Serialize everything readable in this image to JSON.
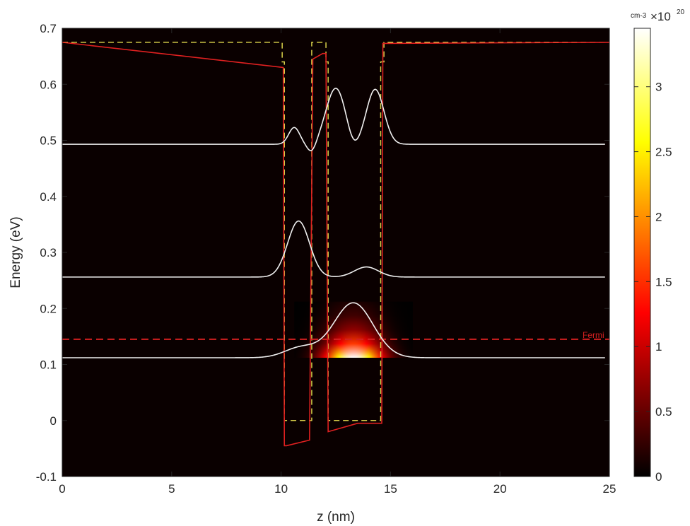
{
  "chart_data": {
    "type": "line",
    "title": "",
    "xlabel": "z (nm)",
    "ylabel": "Energy (eV)",
    "xlim": [
      0,
      25
    ],
    "ylim": [
      -0.1,
      0.7
    ],
    "xticks": [
      "0",
      "5",
      "10",
      "15",
      "20",
      "25"
    ],
    "yticks": [
      "-0.1",
      "0",
      "0.1",
      "0.2",
      "0.3",
      "0.4",
      "0.5",
      "0.6",
      "0.7"
    ],
    "background": "#0a0000",
    "colorbar": {
      "range": [
        0,
        3.45
      ],
      "ticks": [
        "0",
        "0.5",
        "1",
        "1.5",
        "2",
        "2.5",
        "3"
      ],
      "unit_label": "cm-3",
      "multiplier_label": "×10",
      "exponent_label": "20",
      "colormap": "hot"
    },
    "fermi": {
      "label": "Fermi",
      "energy": 0.145,
      "color": "#d42020"
    },
    "conduction_band": {
      "color": "#e02020",
      "x": [
        0,
        10.1,
        10.15,
        10.25,
        11.3,
        11.45,
        11.9,
        12.05,
        12.15,
        13.5,
        14.6,
        14.65,
        25
      ],
      "y": [
        0.675,
        0.63,
        -0.045,
        -0.045,
        -0.035,
        0.645,
        0.655,
        0.655,
        -0.02,
        -0.005,
        -0.005,
        0.673,
        0.675
      ]
    },
    "unstrained_band": {
      "color": "#d8d04a",
      "x": [
        0,
        10.05,
        10.05,
        10.15,
        10.15,
        11.4,
        11.4,
        11.4,
        11.4,
        12.05,
        12.05,
        12.15,
        12.15,
        14.55,
        14.55,
        14.7,
        14.7,
        25
      ],
      "y": [
        0.675,
        0.675,
        0.64,
        0.64,
        0.0,
        0.0,
        0.64,
        0.64,
        0.675,
        0.675,
        0.64,
        0.64,
        0.0,
        0.0,
        0.64,
        0.64,
        0.675,
        0.675
      ]
    },
    "wavefunctions": [
      {
        "energy": 0.112,
        "peaks": [
          [
            10.9,
            0.75,
            0.018
          ],
          [
            13.3,
            0.9,
            0.098
          ]
        ]
      },
      {
        "energy": 0.256,
        "peaks": [
          [
            10.8,
            0.5,
            0.1
          ],
          [
            13.9,
            0.55,
            0.018
          ]
        ]
      },
      {
        "energy": 0.493,
        "peaks": [
          [
            10.6,
            0.25,
            0.03
          ],
          [
            11.4,
            0.2,
            -0.016
          ],
          [
            12.5,
            0.45,
            0.1
          ],
          [
            13.3,
            0.25,
            -0.015
          ],
          [
            14.3,
            0.4,
            0.098
          ]
        ]
      }
    ],
    "density": {
      "center": 13.3,
      "sigma": 0.9,
      "max": 3.45,
      "base_energy": 0.112
    }
  }
}
